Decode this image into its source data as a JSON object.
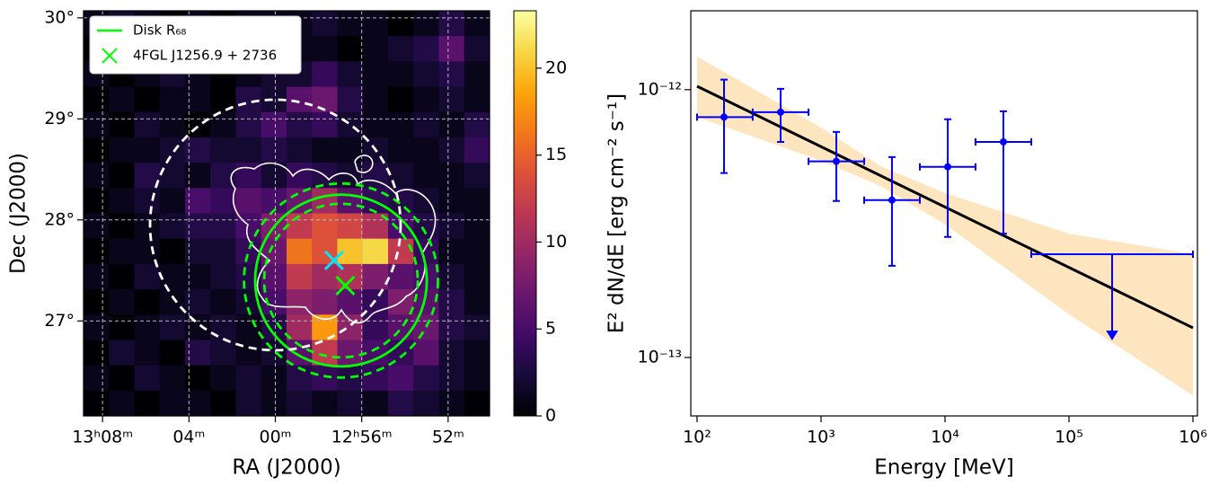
{
  "chart_data": [
    {
      "type": "heatmap",
      "xlabel": "RA (J2000)",
      "ylabel": "Dec (J2000)",
      "xlim": [
        197.22,
        192.52
      ],
      "ylim": [
        26.06,
        30.07
      ],
      "xticks": [
        {
          "value": 197,
          "label": "13ʰ08ᵐ"
        },
        {
          "value": 196,
          "label": "04ᵐ"
        },
        {
          "value": 195,
          "label": "00ᵐ"
        },
        {
          "value": 194,
          "label": "12ʰ56ᵐ"
        },
        {
          "value": 193,
          "label": "52ᵐ"
        }
      ],
      "yticks": [
        {
          "value": 27,
          "label": "27°"
        },
        {
          "value": 28,
          "label": "28°"
        },
        {
          "value": 29,
          "label": "29°"
        },
        {
          "value": 30,
          "label": "30°"
        }
      ],
      "grid": true,
      "colormap": "inferno",
      "clim": [
        0,
        23.3
      ],
      "cticks": [
        0,
        5,
        10,
        15,
        20
      ],
      "z": [
        [
          1,
          2,
          1,
          0,
          1,
          0,
          1,
          1,
          1,
          2,
          1,
          1,
          0,
          1,
          3,
          1
        ],
        [
          0,
          1,
          0,
          1,
          0,
          1,
          1,
          2,
          1,
          1,
          0,
          1,
          2,
          3,
          6,
          2
        ],
        [
          1,
          0,
          1,
          2,
          1,
          0,
          1,
          2,
          2,
          4,
          2,
          1,
          1,
          2,
          3,
          1
        ],
        [
          0,
          1,
          0,
          1,
          1,
          0,
          3,
          2,
          6,
          7,
          3,
          1,
          0,
          1,
          2,
          1
        ],
        [
          1,
          0,
          2,
          1,
          0,
          1,
          3,
          5,
          3,
          4,
          2,
          1,
          1,
          2,
          1,
          3
        ],
        [
          0,
          1,
          1,
          2,
          3,
          2,
          2,
          3,
          2,
          1,
          1,
          2,
          1,
          1,
          2,
          4
        ],
        [
          1,
          0,
          3,
          2,
          1,
          3,
          4,
          2,
          4,
          3,
          2,
          3,
          2,
          1,
          1,
          2
        ],
        [
          0,
          1,
          2,
          1,
          5,
          4,
          6,
          5,
          7,
          10,
          6,
          4,
          3,
          2,
          1,
          1
        ],
        [
          1,
          0,
          1,
          2,
          3,
          3,
          5,
          8,
          12,
          14,
          13,
          11,
          5,
          3,
          2,
          1
        ],
        [
          0,
          1,
          1,
          0,
          2,
          2,
          4,
          7,
          16,
          14,
          20,
          21,
          12,
          4,
          1,
          1
        ],
        [
          1,
          0,
          2,
          1,
          1,
          2,
          3,
          6,
          12,
          10,
          11,
          8,
          6,
          5,
          2,
          1
        ],
        [
          0,
          1,
          0,
          1,
          2,
          1,
          2,
          5,
          9,
          8,
          6,
          4,
          8,
          6,
          3,
          1
        ],
        [
          1,
          0,
          1,
          2,
          1,
          2,
          1,
          3,
          10,
          18,
          9,
          4,
          6,
          7,
          3,
          2
        ],
        [
          0,
          2,
          1,
          0,
          3,
          2,
          1,
          2,
          6,
          12,
          7,
          5,
          4,
          6,
          2,
          1
        ],
        [
          1,
          0,
          2,
          1,
          0,
          1,
          2,
          1,
          3,
          4,
          3,
          4,
          5,
          3,
          2,
          1
        ],
        [
          0,
          1,
          0,
          1,
          1,
          0,
          2,
          1,
          2,
          1,
          2,
          1,
          3,
          2,
          1,
          0
        ]
      ],
      "circles": [
        {
          "name": "Disk R₆₈",
          "color": "#00ff00",
          "center": [
            194.24,
            27.4
          ],
          "radius": 0.85,
          "radius_band": [
            0.76,
            0.96
          ]
        },
        {
          "color": "#ffffff",
          "center": [
            195.0,
            27.95
          ],
          "radius": 1.24,
          "dashed": true
        }
      ],
      "markers": [
        {
          "name": "4FGL J1256.9 + 2736",
          "color": "#00ff00",
          "ra": 194.19,
          "dec": 27.35
        },
        {
          "color": "#00e5ff",
          "ra": 194.32,
          "dec": 27.6
        }
      ],
      "legend": "upper left"
    },
    {
      "type": "errorbar",
      "xlabel": "Energy [MeV]",
      "ylabel": "E² dN/dE [erg cm⁻² s⁻¹]",
      "xscale": "log",
      "yscale": "log",
      "xlim": [
        89,
        1087000
      ],
      "ylim": [
        6.05e-14,
        1.97e-12
      ],
      "xticks": [
        {
          "value": 100,
          "label": "10²"
        },
        {
          "value": 1000,
          "label": "10³"
        },
        {
          "value": 10000,
          "label": "10⁴"
        },
        {
          "value": 100000,
          "label": "10⁵"
        },
        {
          "value": 1000000,
          "label": "10⁶"
        }
      ],
      "yticks": [
        {
          "value": 1e-13,
          "label": "10⁻¹³"
        },
        {
          "value": 1e-12,
          "label": "10⁻¹²"
        }
      ],
      "points": {
        "color": "#0000ff",
        "x": [
          165,
          472,
          1328,
          3733,
          10520,
          29580,
          222800
        ],
        "y": [
          7.9e-13,
          8.24e-13,
          5.4e-13,
          3.87e-13,
          5.15e-13,
          6.38e-13,
          2.43e-13
        ],
        "x_low": [
          100,
          281,
          793,
          2228,
          6266,
          17620,
          49650
        ],
        "x_high": [
          281,
          793,
          2228,
          6266,
          17620,
          49650,
          1000000
        ],
        "y_low": [
          4.88e-13,
          6.38e-13,
          3.84e-13,
          2.2e-13,
          2.82e-13,
          2.9e-13,
          null
        ],
        "y_high": [
          1.09e-12,
          1.007e-12,
          6.95e-13,
          5.6e-13,
          7.75e-13,
          8.3e-13,
          null
        ],
        "upper_limit": [
          false,
          false,
          false,
          false,
          false,
          false,
          true
        ]
      },
      "model": {
        "color": "#000000",
        "x": [
          100,
          1000000
        ],
        "y": [
          1.03e-12,
          1.29e-13
        ]
      },
      "band": {
        "color": "#fde3b8",
        "x": [
          100,
          1000,
          3000,
          10000,
          100000,
          1000000
        ],
        "lower": [
          7.9e-13,
          5.43e-13,
          4.37e-13,
          3.14e-13,
          1.45e-13,
          7.2e-14
        ],
        "upper": [
          1.33e-12,
          7.22e-13,
          5.19e-13,
          4.11e-13,
          2.9e-13,
          2.43e-13
        ]
      }
    }
  ]
}
